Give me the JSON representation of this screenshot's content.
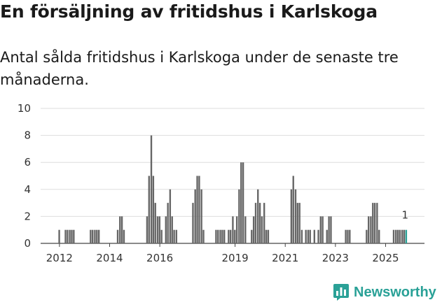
{
  "title": "En försäljning av fritidshus i Karlskoga",
  "subtitle": "Antal sålda fritidshus i Karlskoga under de senaste tre månaderna.",
  "brand": {
    "name": "Newsworthy",
    "color": "#2aa197",
    "icon": "bar-chart-logo-icon"
  },
  "chart_data": {
    "type": "bar",
    "title": "En försäljning av fritidshus i Karlskoga",
    "subtitle": "Antal sålda fritidshus i Karlskoga under de senaste tre månaderna.",
    "xlabel": "",
    "ylabel": "",
    "ylim": [
      0,
      10
    ],
    "yticks": [
      0,
      2,
      4,
      6,
      8,
      10
    ],
    "xticks": [
      "2012",
      "2014",
      "2016",
      "2019",
      "2021",
      "2023",
      "2025"
    ],
    "xtick_positions": [
      2012.0,
      2014.0,
      2016.0,
      2019.0,
      2021.0,
      2023.0,
      2025.0
    ],
    "x_range": [
      2011.25,
      2026.55
    ],
    "grid": true,
    "bar_color": "#666666",
    "highlight_color": "#2aa197",
    "bar_width_months": 1,
    "last_value_label": "1",
    "series": [
      {
        "name": "Antal sålda fritidshus",
        "x": [
          2012.0,
          2012.25,
          2012.33,
          2012.42,
          2012.5,
          2012.58,
          2013.25,
          2013.33,
          2013.42,
          2013.5,
          2013.58,
          2014.33,
          2014.42,
          2014.5,
          2014.58,
          2015.5,
          2015.58,
          2015.67,
          2015.75,
          2015.83,
          2015.92,
          2016.0,
          2016.08,
          2016.25,
          2016.33,
          2016.42,
          2016.5,
          2016.58,
          2016.67,
          2017.33,
          2017.42,
          2017.5,
          2017.58,
          2017.67,
          2017.75,
          2018.25,
          2018.33,
          2018.42,
          2018.5,
          2018.58,
          2018.75,
          2018.83,
          2018.92,
          2019.0,
          2019.08,
          2019.17,
          2019.25,
          2019.33,
          2019.42,
          2019.67,
          2019.75,
          2019.83,
          2019.92,
          2020.0,
          2020.08,
          2020.17,
          2020.25,
          2020.33,
          2021.25,
          2021.33,
          2021.42,
          2021.5,
          2021.58,
          2021.67,
          2021.83,
          2021.92,
          2022.0,
          2022.17,
          2022.33,
          2022.42,
          2022.5,
          2022.67,
          2022.75,
          2022.83,
          2023.42,
          2023.5,
          2023.58,
          2024.25,
          2024.33,
          2024.42,
          2024.5,
          2024.58,
          2024.67,
          2024.75,
          2025.33,
          2025.42,
          2025.5,
          2025.58,
          2025.67,
          2025.75,
          2025.83
        ],
        "values": [
          1,
          1,
          1,
          1,
          1,
          1,
          1,
          1,
          1,
          1,
          1,
          1,
          2,
          2,
          1,
          2,
          5,
          8,
          5,
          3,
          2,
          2,
          1,
          2,
          3,
          4,
          2,
          1,
          1,
          3,
          4,
          5,
          5,
          4,
          1,
          1,
          1,
          1,
          1,
          1,
          1,
          1,
          2,
          1,
          2,
          4,
          6,
          6,
          2,
          1,
          2,
          3,
          4,
          3,
          2,
          3,
          1,
          1,
          4,
          5,
          4,
          3,
          3,
          1,
          1,
          1,
          1,
          1,
          1,
          2,
          2,
          1,
          2,
          2,
          1,
          1,
          1,
          1,
          2,
          2,
          3,
          3,
          3,
          1,
          1,
          1,
          1,
          1,
          1,
          1,
          1
        ]
      }
    ]
  }
}
